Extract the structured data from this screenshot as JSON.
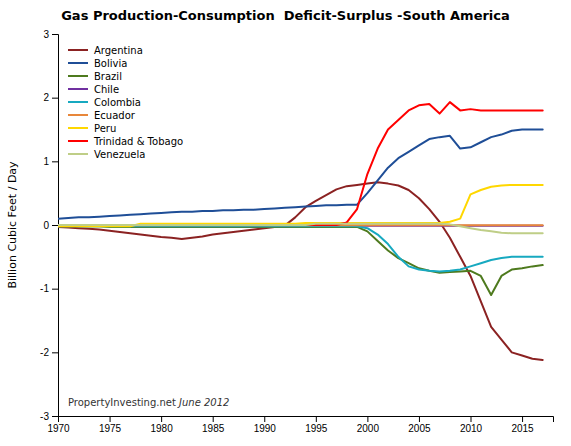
{
  "chart_data": {
    "type": "line",
    "title": "Gas Production-Consumption  Deficit-Surplus -South America",
    "y_label": "Billion Cubic Feet / Day",
    "x": [
      1970,
      1971,
      1972,
      1973,
      1974,
      1975,
      1976,
      1977,
      1978,
      1979,
      1980,
      1981,
      1982,
      1983,
      1984,
      1985,
      1986,
      1987,
      1988,
      1989,
      1990,
      1991,
      1992,
      1993,
      1994,
      1995,
      1996,
      1997,
      1998,
      1999,
      2000,
      2001,
      2002,
      2003,
      2004,
      2005,
      2006,
      2007,
      2008,
      2009,
      2010,
      2011,
      2012,
      2013,
      2014,
      2015,
      2016,
      2017
    ],
    "xlim": [
      1970,
      2018
    ],
    "ylim": [
      -3,
      3
    ],
    "xticks": [
      1970,
      1975,
      1980,
      1985,
      1990,
      1995,
      2000,
      2005,
      2010,
      2015
    ],
    "yticks": [
      -3,
      -2,
      -1,
      0,
      1,
      2,
      3
    ],
    "grid": false,
    "legend": "upper left",
    "annotations": [
      {
        "text": "PropertyInvesting.net"
      },
      {
        "text": " June 2012"
      }
    ],
    "series": [
      {
        "name": "Argentina",
        "color": "#8B2222",
        "values": [
          -0.03,
          -0.04,
          -0.05,
          -0.06,
          -0.07,
          -0.09,
          -0.11,
          -0.13,
          -0.15,
          -0.17,
          -0.19,
          -0.2,
          -0.22,
          -0.2,
          -0.18,
          -0.15,
          -0.13,
          -0.11,
          -0.09,
          -0.07,
          -0.05,
          -0.03,
          -0.01,
          0.12,
          0.28,
          0.38,
          0.47,
          0.56,
          0.61,
          0.63,
          0.65,
          0.67,
          0.65,
          0.62,
          0.55,
          0.42,
          0.25,
          0.05,
          -0.2,
          -0.5,
          -0.8,
          -1.2,
          -1.6,
          -1.8,
          -2.0,
          -2.05,
          -2.1,
          -2.12
        ]
      },
      {
        "name": "Bolivia",
        "color": "#1F4E97",
        "values": [
          0.1,
          0.11,
          0.12,
          0.12,
          0.13,
          0.14,
          0.15,
          0.16,
          0.17,
          0.18,
          0.19,
          0.2,
          0.21,
          0.21,
          0.22,
          0.22,
          0.23,
          0.23,
          0.24,
          0.24,
          0.25,
          0.26,
          0.27,
          0.28,
          0.29,
          0.3,
          0.31,
          0.31,
          0.32,
          0.32,
          0.5,
          0.7,
          0.9,
          1.05,
          1.15,
          1.25,
          1.35,
          1.38,
          1.4,
          1.2,
          1.22,
          1.3,
          1.38,
          1.42,
          1.48,
          1.5,
          1.5,
          1.5
        ]
      },
      {
        "name": "Brazil",
        "color": "#4E7A1E",
        "values": [
          -0.02,
          -0.02,
          -0.02,
          -0.02,
          -0.02,
          -0.03,
          -0.03,
          -0.03,
          -0.03,
          -0.03,
          -0.03,
          -0.03,
          -0.03,
          -0.03,
          -0.03,
          -0.03,
          -0.03,
          -0.03,
          -0.03,
          -0.03,
          -0.03,
          -0.03,
          -0.03,
          -0.03,
          -0.03,
          -0.03,
          -0.03,
          -0.03,
          -0.03,
          -0.03,
          -0.1,
          -0.25,
          -0.4,
          -0.52,
          -0.6,
          -0.68,
          -0.72,
          -0.75,
          -0.74,
          -0.73,
          -0.72,
          -0.8,
          -1.1,
          -0.8,
          -0.7,
          -0.68,
          -0.65,
          -0.63
        ]
      },
      {
        "name": "Chile",
        "color": "#7030A0",
        "values": [
          -0.01,
          -0.01,
          -0.01,
          -0.01,
          -0.01,
          -0.01,
          -0.01,
          -0.01,
          -0.01,
          -0.01,
          -0.01,
          -0.01,
          -0.01,
          -0.01,
          -0.01,
          -0.01,
          -0.01,
          -0.01,
          -0.01,
          -0.01,
          -0.01,
          -0.01,
          -0.01,
          -0.01,
          -0.01,
          -0.01,
          -0.01,
          -0.01,
          -0.01,
          -0.01,
          -0.01,
          -0.01,
          -0.01,
          -0.01,
          -0.01,
          -0.01,
          -0.01,
          -0.01,
          -0.01,
          -0.01,
          -0.01,
          -0.01,
          -0.01,
          -0.01,
          -0.01,
          -0.01,
          -0.01,
          -0.01
        ]
      },
      {
        "name": "Colombia",
        "color": "#17A9C0",
        "values": [
          -0.02,
          -0.02,
          -0.02,
          -0.02,
          -0.02,
          -0.02,
          -0.02,
          -0.02,
          -0.02,
          -0.02,
          -0.02,
          -0.02,
          -0.02,
          -0.02,
          -0.02,
          -0.02,
          -0.02,
          -0.02,
          -0.02,
          -0.02,
          -0.02,
          -0.02,
          -0.02,
          -0.02,
          -0.02,
          -0.02,
          -0.02,
          -0.02,
          -0.02,
          -0.02,
          -0.05,
          -0.15,
          -0.3,
          -0.5,
          -0.65,
          -0.7,
          -0.72,
          -0.73,
          -0.72,
          -0.7,
          -0.65,
          -0.6,
          -0.55,
          -0.52,
          -0.5,
          -0.5,
          -0.5,
          -0.5
        ]
      },
      {
        "name": "Ecuador",
        "color": "#E8873A",
        "values": [
          -0.005,
          -0.005,
          -0.005,
          -0.005,
          -0.005,
          -0.005,
          -0.005,
          -0.005,
          -0.005,
          -0.005,
          -0.005,
          -0.005,
          -0.005,
          -0.005,
          -0.005,
          -0.005,
          -0.005,
          -0.005,
          -0.005,
          -0.005,
          -0.005,
          -0.005,
          -0.005,
          -0.005,
          -0.005,
          -0.005,
          -0.005,
          -0.005,
          -0.005,
          -0.005,
          -0.005,
          -0.005,
          -0.005,
          -0.005,
          -0.005,
          -0.005,
          -0.005,
          -0.005,
          -0.005,
          -0.005,
          -0.005,
          -0.005,
          -0.005,
          -0.005,
          -0.005,
          -0.005,
          -0.005,
          -0.005
        ]
      },
      {
        "name": "Peru",
        "color": "#FFD700",
        "values": [
          -0.02,
          -0.02,
          -0.02,
          -0.02,
          -0.02,
          -0.02,
          -0.02,
          -0.02,
          0.02,
          0.02,
          0.02,
          0.02,
          0.02,
          0.02,
          0.02,
          0.02,
          0.02,
          0.02,
          0.02,
          0.02,
          0.02,
          0.02,
          0.02,
          0.02,
          0.03,
          0.03,
          0.03,
          0.03,
          0.03,
          0.03,
          0.03,
          0.03,
          0.03,
          0.03,
          0.03,
          0.03,
          0.03,
          0.03,
          0.05,
          0.1,
          0.48,
          0.55,
          0.6,
          0.62,
          0.63,
          0.63,
          0.63,
          0.63
        ]
      },
      {
        "name": "Trinidad & Tobago",
        "color": "#FF0000",
        "values": [
          0.0,
          0.0,
          0.0,
          0.0,
          0.0,
          0.0,
          0.0,
          0.0,
          0.0,
          0.0,
          0.0,
          0.0,
          0.0,
          0.0,
          0.0,
          0.0,
          0.0,
          0.0,
          0.0,
          0.0,
          0.0,
          0.0,
          0.0,
          0.0,
          0.0,
          0.0,
          0.0,
          0.0,
          0.04,
          0.25,
          0.8,
          1.2,
          1.5,
          1.65,
          1.8,
          1.88,
          1.9,
          1.75,
          1.93,
          1.8,
          1.82,
          1.8,
          1.8,
          1.8,
          1.8,
          1.8,
          1.8,
          1.8
        ]
      },
      {
        "name": "Venezuela",
        "color": "#BFCE87",
        "values": [
          0.0,
          0.0,
          0.0,
          0.0,
          0.0,
          0.0,
          0.0,
          0.0,
          0.0,
          0.0,
          0.0,
          0.0,
          0.0,
          0.0,
          0.0,
          0.0,
          0.0,
          0.0,
          0.0,
          0.0,
          0.0,
          0.0,
          0.0,
          0.0,
          0.0,
          0.02,
          0.02,
          0.02,
          0.02,
          0.02,
          0.02,
          0.02,
          0.02,
          0.02,
          0.02,
          0.02,
          0.02,
          0.02,
          0.01,
          -0.02,
          -0.05,
          -0.08,
          -0.1,
          -0.12,
          -0.13,
          -0.13,
          -0.13,
          -0.13
        ]
      }
    ]
  }
}
